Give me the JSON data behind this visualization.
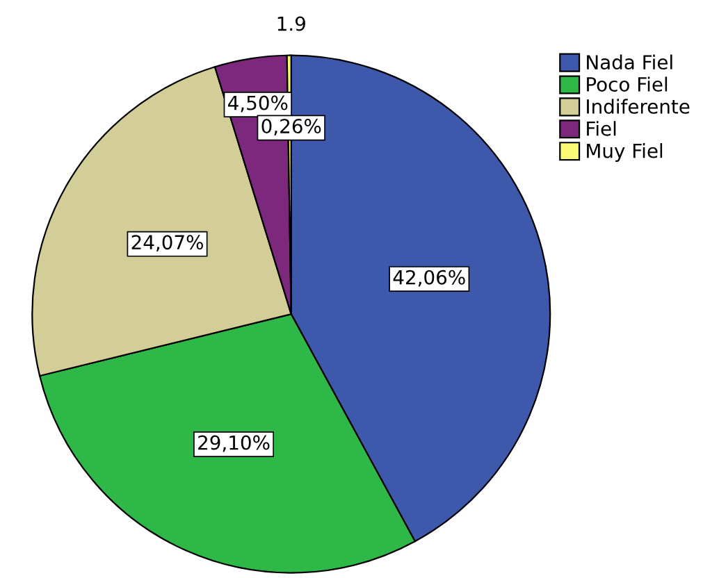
{
  "chart_data": {
    "type": "pie",
    "title": "1.9",
    "categories": [
      "Nada Fiel",
      "Poco Fiel",
      "Indiferente",
      "Fiel",
      "Muy Fiel"
    ],
    "values": [
      42.06,
      29.1,
      24.07,
      4.5,
      0.26
    ],
    "value_labels": [
      "42,06%",
      "29,10%",
      "24,07%",
      "4,50%",
      "0,26%"
    ],
    "colors": [
      "#3e58ac",
      "#2eb848",
      "#d3ce97",
      "#7c287d",
      "#fbf873"
    ],
    "legend": "top right"
  }
}
